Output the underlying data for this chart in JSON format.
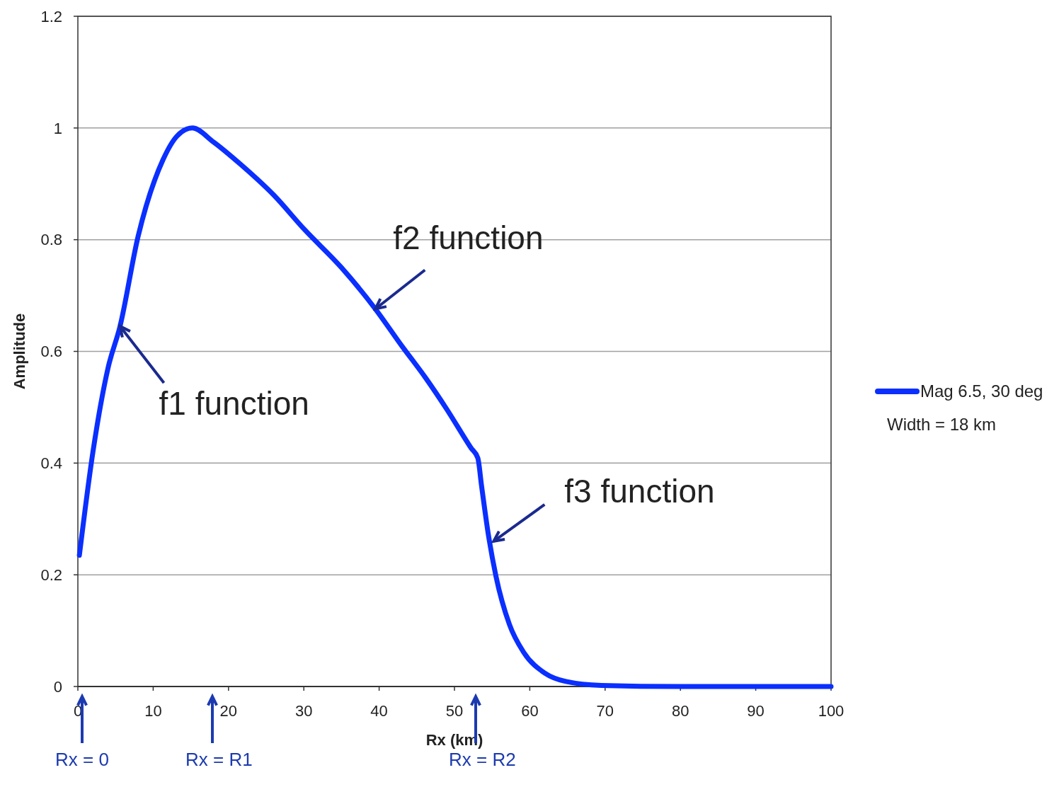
{
  "chart_data": {
    "type": "line",
    "xlabel": "Rx (km)",
    "ylabel": "Amplitude",
    "xlim": [
      0,
      100
    ],
    "ylim": [
      0,
      1.2
    ],
    "xticks": [
      0,
      10,
      20,
      30,
      40,
      50,
      60,
      70,
      80,
      90,
      100
    ],
    "yticks": [
      0,
      0.2,
      0.4,
      0.6,
      0.8,
      1,
      1.2
    ],
    "grid": "y",
    "legend": "right",
    "marker": "none",
    "line_style": "solid",
    "series": [
      {
        "name": "Mag 6.5, 30 deg",
        "color": "#0a2fff",
        "x": [
          0.2,
          2,
          4,
          5.6,
          8,
          11.3,
          13.2,
          15.2,
          18,
          21.6,
          26,
          30.1,
          35,
          39.5,
          43,
          46.2,
          49,
          52.2,
          53.1,
          53.6,
          54.5,
          55.5,
          57.3,
          59.2,
          62,
          64.8,
          69.5,
          80,
          100
        ],
        "values": [
          0.235,
          0.42,
          0.57,
          0.645,
          0.806,
          0.943,
          0.986,
          1.0,
          0.975,
          0.935,
          0.88,
          0.818,
          0.75,
          0.676,
          0.61,
          0.552,
          0.496,
          0.427,
          0.409,
          0.359,
          0.272,
          0.198,
          0.111,
          0.061,
          0.024,
          0.009,
          0.002,
          0.0,
          0.0
        ]
      }
    ],
    "annotations": [
      {
        "text": "f1 function",
        "x": 5.6,
        "y": 0.645
      },
      {
        "text": "f2 function",
        "x": 39.5,
        "y": 0.676
      },
      {
        "text": "f3 function",
        "x": 55.2,
        "y": 0.26
      },
      "Rx = 0",
      "Rx = R1",
      "Rx = R2",
      "Width = 18 km"
    ]
  }
}
